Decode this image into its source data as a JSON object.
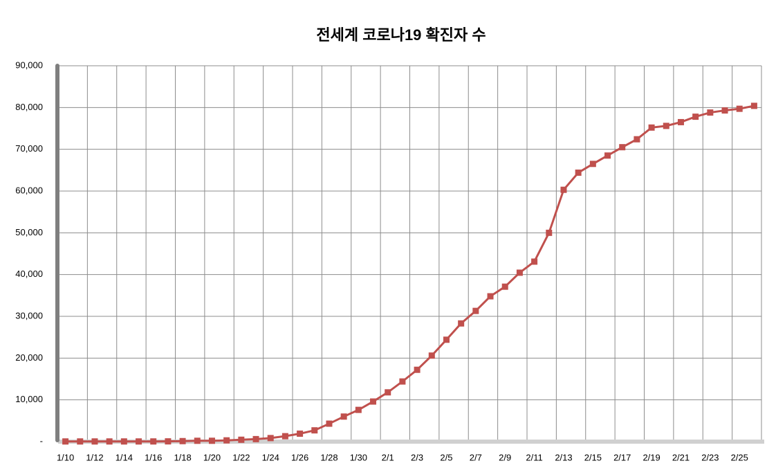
{
  "chart_data": {
    "type": "line",
    "title": "전세계 코로나19 확진자 수",
    "categories": [
      "1/10",
      null,
      "1/12",
      null,
      "1/14",
      null,
      "1/16",
      null,
      "1/18",
      null,
      "1/20",
      null,
      "1/22",
      null,
      "1/24",
      null,
      "1/26",
      null,
      "1/28",
      null,
      "1/30",
      null,
      "2/1",
      null,
      "2/3",
      null,
      "2/5",
      null,
      "2/7",
      null,
      "2/9",
      null,
      "2/11",
      null,
      "2/13",
      null,
      "2/15",
      null,
      "2/17",
      null,
      "2/19",
      null,
      "2/21",
      null,
      "2/23",
      null,
      "2/25",
      null
    ],
    "series": [
      {
        "name": "확진자 수",
        "color": "#c0504d",
        "values": [
          41,
          41,
          41,
          41,
          41,
          41,
          45,
          62,
          121,
          198,
          200,
          300,
          450,
          600,
          850,
          1300,
          1900,
          2700,
          4300,
          6000,
          7600,
          9600,
          11800,
          14400,
          17200,
          20600,
          24400,
          28300,
          31300,
          34800,
          37100,
          40450,
          43100,
          50000,
          60300,
          64400,
          66500,
          68500,
          70500,
          72400,
          75200,
          75600,
          76500,
          77800,
          78800,
          79300,
          79700,
          80400
        ]
      }
    ],
    "ylim": [
      0,
      90000
    ],
    "yticks": [
      {
        "value": 0,
        "label": "-"
      },
      {
        "value": 10000,
        "label": "10,000"
      },
      {
        "value": 20000,
        "label": "20,000"
      },
      {
        "value": 30000,
        "label": "30,000"
      },
      {
        "value": 40000,
        "label": "40,000"
      },
      {
        "value": 50000,
        "label": "50,000"
      },
      {
        "value": 60000,
        "label": "60,000"
      },
      {
        "value": 70000,
        "label": "70,000"
      },
      {
        "value": 80000,
        "label": "80,000"
      },
      {
        "value": 90000,
        "label": "90,000"
      }
    ],
    "grid": true
  }
}
